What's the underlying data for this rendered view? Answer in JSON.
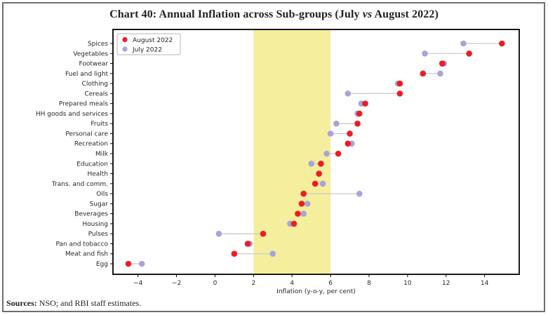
{
  "figure": {
    "title_prefix": "Chart 40: Annual Inflation across Sub-groups (July ",
    "title_vs": "vs",
    "title_suffix": " August 2022)",
    "sources_label": "Sources:",
    "sources_text": " NSO; and RBI staff estimates."
  },
  "chart_data": {
    "type": "scatter",
    "subtype": "dumbbell-dot-plot",
    "title": "Chart 40: Annual Inflation across Sub-groups (July vs August 2022)",
    "xlabel": "Inflation (y-o-y, per cent)",
    "categories": [
      "Spices",
      "Vegetables",
      "Footwear",
      "Fuel and light",
      "Clothing",
      "Cereals",
      "Prepared meals",
      "HH goods and services",
      "Fruits",
      "Personal care",
      "Recreation",
      "Milk",
      "Education",
      "Health",
      "Trans. and comm.",
      "Oils",
      "Sugar",
      "Beverages",
      "Housing",
      "Pulses",
      "Pan and tobacco",
      "Meat and fish",
      "Egg"
    ],
    "series": [
      {
        "name": "August 2022",
        "color": "#ee1c25",
        "values": [
          14.9,
          13.2,
          11.8,
          10.8,
          9.6,
          9.6,
          7.8,
          7.5,
          7.4,
          7.0,
          6.9,
          6.4,
          5.5,
          5.4,
          5.2,
          4.6,
          4.5,
          4.3,
          4.1,
          2.5,
          1.7,
          1.0,
          -4.5
        ]
      },
      {
        "name": "July 2022",
        "color": "#a5a5d8",
        "values": [
          12.9,
          10.9,
          11.9,
          11.7,
          9.5,
          6.9,
          7.6,
          7.4,
          6.3,
          6.0,
          7.1,
          5.8,
          5.0,
          5.4,
          5.6,
          7.5,
          4.8,
          4.6,
          3.9,
          0.2,
          1.8,
          3.0,
          -3.8
        ]
      }
    ],
    "xticks": [
      -4,
      -2,
      0,
      2,
      4,
      6,
      8,
      10,
      12,
      14
    ],
    "xtick_labels": [
      "−4",
      "−2",
      "0",
      "2",
      "4",
      "6",
      "8",
      "10",
      "12",
      "14"
    ],
    "xlim": [
      -5.3,
      15.8
    ],
    "band": {
      "from": 2,
      "to": 6,
      "color": "#f5ee9d"
    },
    "grid": false,
    "legend_position": "top-left",
    "connector_color": "#c9c9c9",
    "plot_border_color": "#000000"
  }
}
